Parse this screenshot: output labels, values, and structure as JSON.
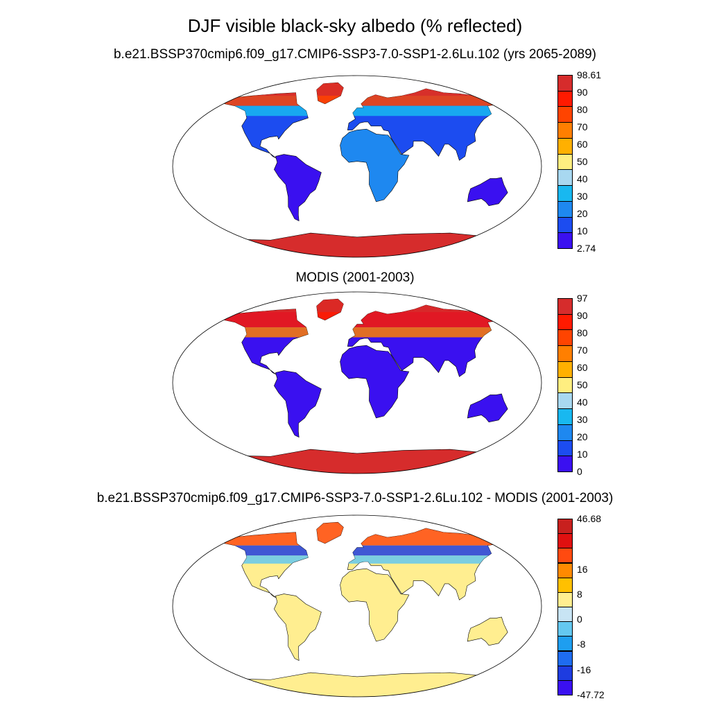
{
  "title": "DJF visible black-sky albedo (% reflected)",
  "panels": [
    {
      "id": "model",
      "title": "b.e21.BSSP370cmip6.f09_g17.CMIP6-SSP3-7.0-SSP1-2.6Lu.102 (yrs 2065-2089)",
      "colorbar": {
        "labels": [
          "98.61",
          "90",
          "80",
          "70",
          "60",
          "50",
          "40",
          "30",
          "20",
          "10",
          "2.74"
        ],
        "colors": [
          "#d62c2c",
          "#ff1a00",
          "#ff4400",
          "#ff7f00",
          "#ffb000",
          "#ffee80",
          "#a8d8f0",
          "#18b8f0",
          "#1e88f0",
          "#1c4cf0",
          "#3a10f0"
        ]
      }
    },
    {
      "id": "obs",
      "title": "MODIS (2001-2003)",
      "colorbar": {
        "labels": [
          "97",
          "90",
          "80",
          "70",
          "60",
          "50",
          "40",
          "30",
          "20",
          "10",
          "0"
        ],
        "colors": [
          "#d62c2c",
          "#ff1a00",
          "#ff4400",
          "#ff7f00",
          "#ffb000",
          "#ffee80",
          "#a8d8f0",
          "#18b8f0",
          "#1e88f0",
          "#1c4cf0",
          "#3a10f0"
        ]
      }
    },
    {
      "id": "diff",
      "title": "b.e21.BSSP370cmip6.f09_g17.CMIP6-SSP3-7.0-SSP1-2.6Lu.102 - MODIS (2001-2003)",
      "colorbar": {
        "labels": [
          "46.68",
          "",
          "16",
          "8",
          "0",
          "-8",
          "-16",
          "-47.72"
        ],
        "colors": [
          "#c8201e",
          "#e01010",
          "#ff4a10",
          "#ff8a00",
          "#ffc000",
          "#ffee90",
          "#c8e4f4",
          "#64c8f0",
          "#1e9ef0",
          "#1e6cf0",
          "#1e3ce0",
          "#3a10f0"
        ]
      }
    }
  ]
}
